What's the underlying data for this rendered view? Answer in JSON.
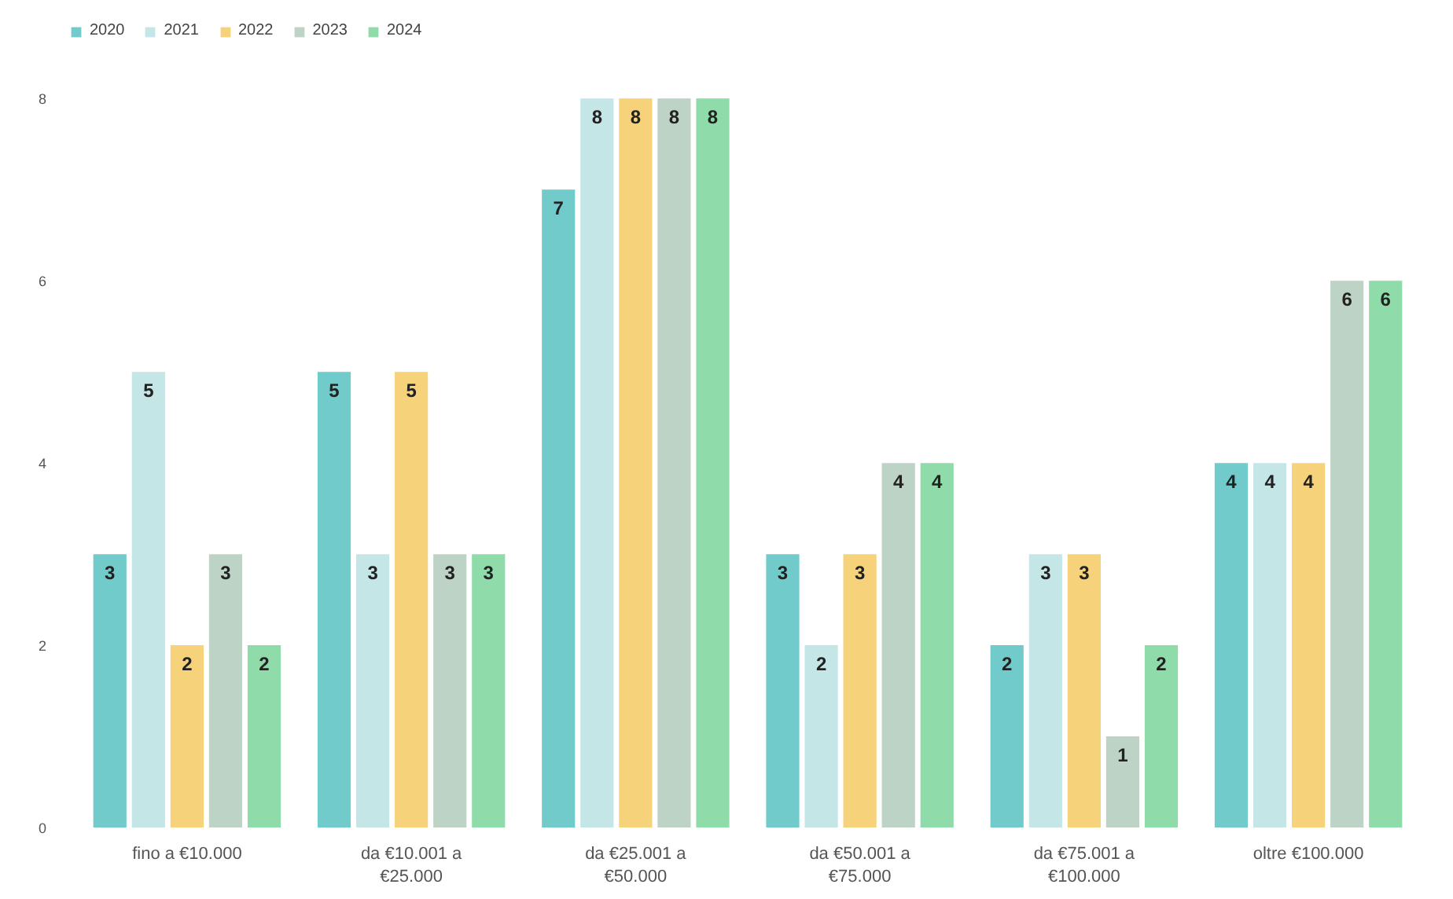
{
  "chart_data": {
    "type": "bar",
    "categories": [
      "fino a €10.000",
      "da €10.001 a €25.000",
      "da €25.001 a €50.000",
      "da €50.001 a €75.000",
      "da €75.001 a €100.000",
      "oltre €100.000"
    ],
    "series": [
      {
        "name": "2020",
        "color": "#72cbcb",
        "values": [
          3,
          5,
          7,
          3,
          2,
          4
        ]
      },
      {
        "name": "2021",
        "color": "#c4e6e6",
        "values": [
          5,
          3,
          8,
          2,
          3,
          4
        ]
      },
      {
        "name": "2022",
        "color": "#f6d27a",
        "values": [
          2,
          5,
          8,
          3,
          3,
          4
        ]
      },
      {
        "name": "2023",
        "color": "#bdd3c5",
        "values": [
          3,
          3,
          8,
          4,
          1,
          6
        ]
      },
      {
        "name": "2024",
        "color": "#8fdcaa",
        "values": [
          2,
          3,
          8,
          4,
          2,
          6
        ]
      }
    ],
    "ylim": [
      0,
      8.9
    ],
    "yticks": [
      0,
      2,
      4,
      6,
      8
    ],
    "grid": false,
    "legend": "top left",
    "data_labels": true
  }
}
